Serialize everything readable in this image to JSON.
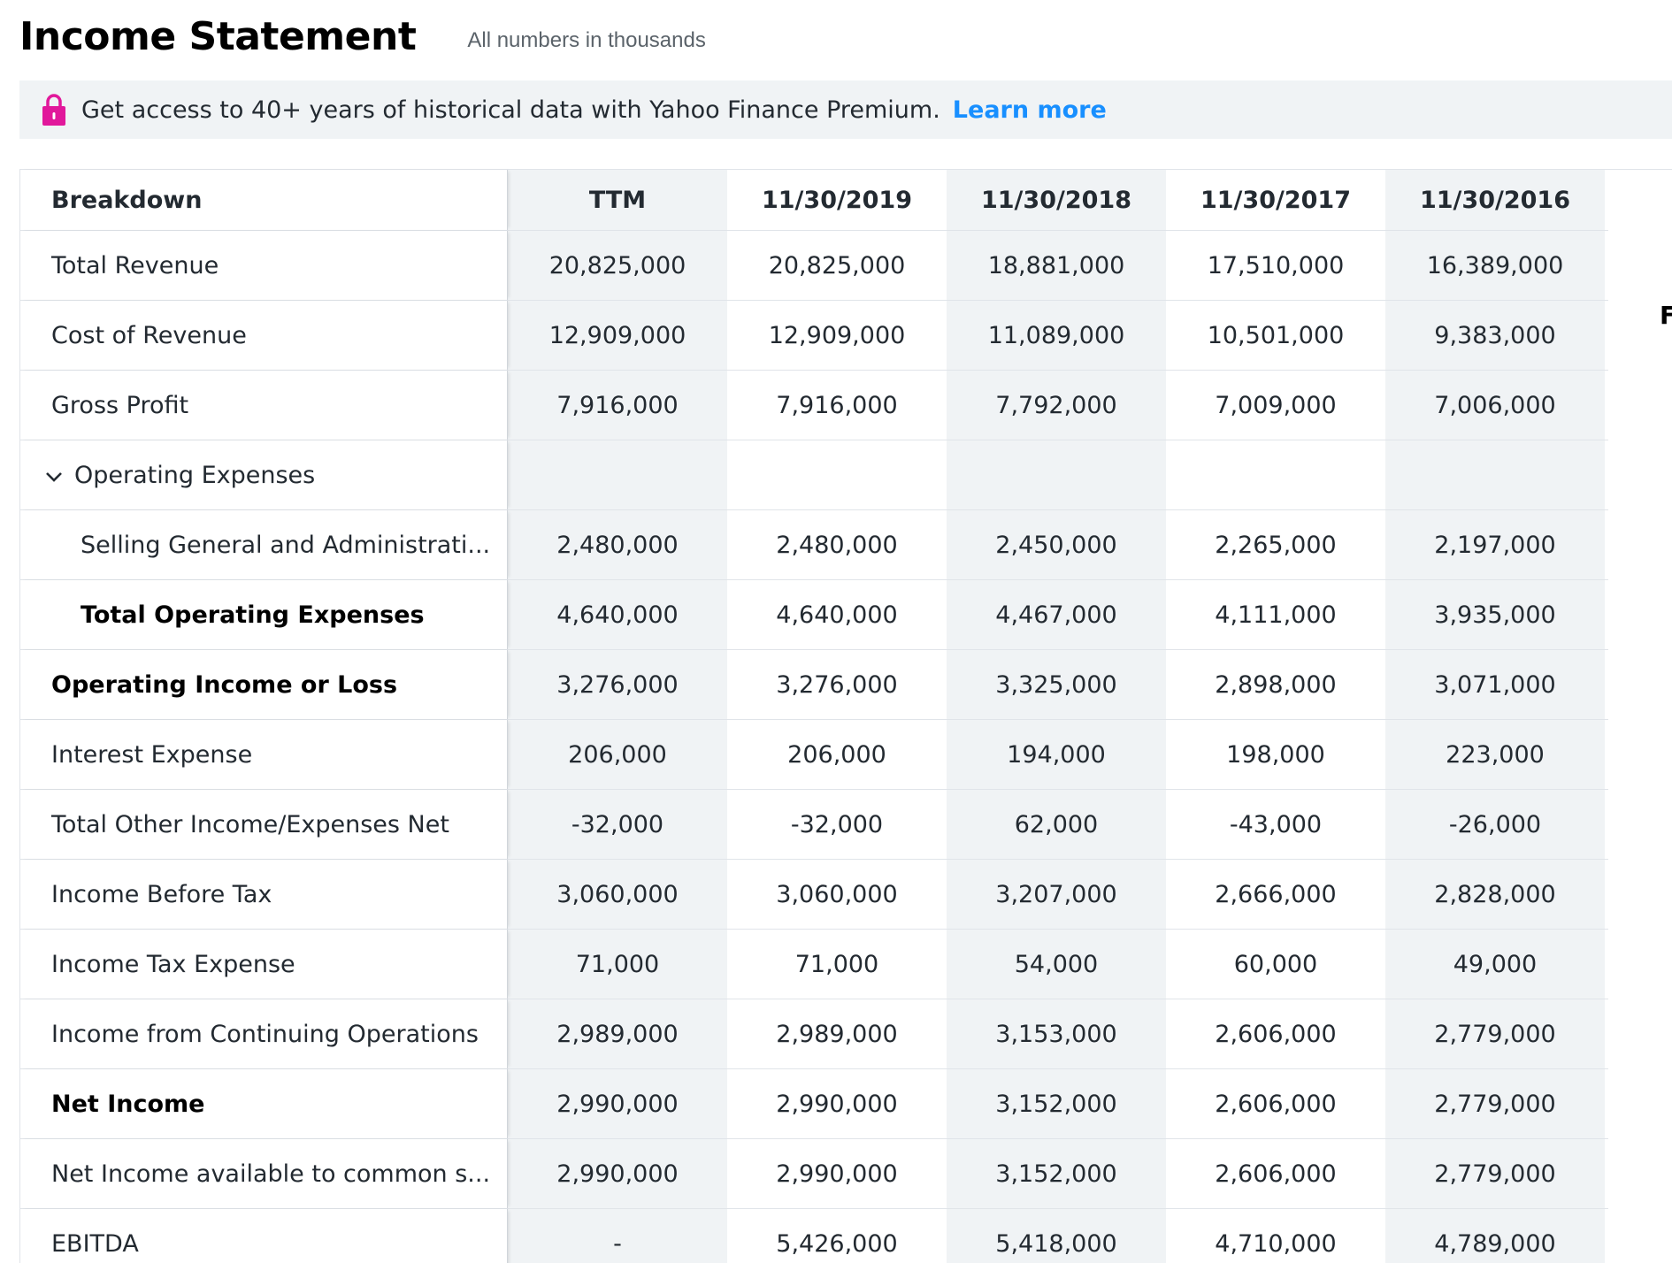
{
  "page": {
    "title": "Income Statement",
    "subtitle": "All numbers in thousands"
  },
  "banner": {
    "icon": "lock-icon",
    "text": "Get access to 40+ years of historical data with Yahoo Finance Premium.",
    "link": "Learn more",
    "accent_color": "#188fff",
    "icon_color": "#e1189b"
  },
  "table": {
    "header": {
      "label": "Breakdown",
      "columns": [
        "TTM",
        "11/30/2019",
        "11/30/2018",
        "11/30/2017",
        "11/30/2016"
      ]
    },
    "rows": [
      {
        "label": "Total Revenue",
        "values": [
          "20,825,000",
          "20,825,000",
          "18,881,000",
          "17,510,000",
          "16,389,000"
        ]
      },
      {
        "label": "Cost of Revenue",
        "values": [
          "12,909,000",
          "12,909,000",
          "11,089,000",
          "10,501,000",
          "9,383,000"
        ]
      },
      {
        "label": "Gross Profit",
        "values": [
          "7,916,000",
          "7,916,000",
          "7,792,000",
          "7,009,000",
          "7,006,000"
        ]
      },
      {
        "label": "Operating Expenses",
        "values": [
          "",
          "",
          "",
          "",
          ""
        ]
      },
      {
        "label": "Selling General and Administrati...",
        "values": [
          "2,480,000",
          "2,480,000",
          "2,450,000",
          "2,265,000",
          "2,197,000"
        ]
      },
      {
        "label": "Total Operating Expenses",
        "values": [
          "4,640,000",
          "4,640,000",
          "4,467,000",
          "4,111,000",
          "3,935,000"
        ]
      },
      {
        "label": "Operating Income or Loss",
        "values": [
          "3,276,000",
          "3,276,000",
          "3,325,000",
          "2,898,000",
          "3,071,000"
        ]
      },
      {
        "label": "Interest Expense",
        "values": [
          "206,000",
          "206,000",
          "194,000",
          "198,000",
          "223,000"
        ]
      },
      {
        "label": "Total Other Income/Expenses Net",
        "values": [
          "-32,000",
          "-32,000",
          "62,000",
          "-43,000",
          "-26,000"
        ]
      },
      {
        "label": "Income Before Tax",
        "values": [
          "3,060,000",
          "3,060,000",
          "3,207,000",
          "2,666,000",
          "2,828,000"
        ]
      },
      {
        "label": "Income Tax Expense",
        "values": [
          "71,000",
          "71,000",
          "54,000",
          "60,000",
          "49,000"
        ]
      },
      {
        "label": "Income from Continuing Operations",
        "values": [
          "2,989,000",
          "2,989,000",
          "3,153,000",
          "2,606,000",
          "2,779,000"
        ]
      },
      {
        "label": "Net Income",
        "values": [
          "2,990,000",
          "2,990,000",
          "3,152,000",
          "2,606,000",
          "2,779,000"
        ]
      },
      {
        "label": "Net Income available to common s...",
        "values": [
          "2,990,000",
          "2,990,000",
          "3,152,000",
          "2,606,000",
          "2,779,000"
        ]
      },
      {
        "label": "EBITDA",
        "values": [
          "-",
          "5,426,000",
          "5,418,000",
          "4,710,000",
          "4,789,000"
        ]
      }
    ]
  },
  "edge_text": "F"
}
